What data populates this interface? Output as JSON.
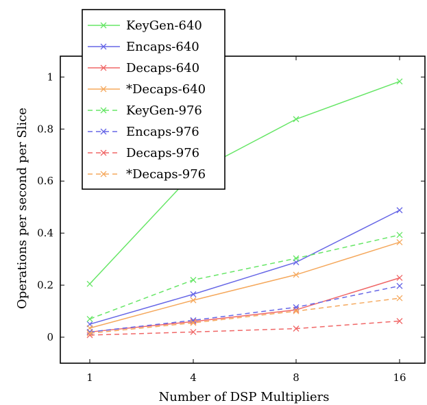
{
  "chart_data": {
    "type": "line",
    "title": "",
    "xlabel": "Number of DSP Multipliers",
    "ylabel": "Operations per second per Slice",
    "x_categories": [
      "1",
      "4",
      "8",
      "16"
    ],
    "ylim": [
      -0.1,
      1.08
    ],
    "y_ticks": [
      0,
      0.2,
      0.4,
      0.6,
      0.8,
      1
    ],
    "y_tick_labels": [
      "0",
      "0.2",
      "0.4",
      "0.6",
      "0.8",
      "1"
    ],
    "grid": false,
    "legend_position": "top-left",
    "series": [
      {
        "name": "KeyGen-640",
        "color": "#66e666",
        "dashed": false,
        "values": [
          0.205,
          0.63,
          0.838,
          0.983
        ]
      },
      {
        "name": "Encaps-640",
        "color": "#6666e6",
        "dashed": false,
        "values": [
          0.05,
          0.165,
          0.288,
          0.488
        ]
      },
      {
        "name": "Decaps-640",
        "color": "#f06666",
        "dashed": false,
        "values": [
          0.02,
          0.06,
          0.105,
          0.228
        ]
      },
      {
        "name": "*Decaps-640",
        "color": "#f5a85c",
        "dashed": false,
        "values": [
          0.035,
          0.142,
          0.24,
          0.365
        ]
      },
      {
        "name": "KeyGen-976",
        "color": "#66e666",
        "dashed": true,
        "values": [
          0.07,
          0.22,
          0.303,
          0.393
        ]
      },
      {
        "name": "Encaps-976",
        "color": "#6666e6",
        "dashed": true,
        "values": [
          0.02,
          0.065,
          0.115,
          0.197
        ]
      },
      {
        "name": "Decaps-976",
        "color": "#f06666",
        "dashed": true,
        "values": [
          0.008,
          0.02,
          0.033,
          0.062
        ]
      },
      {
        "name": "*Decaps-976",
        "color": "#f5a85c",
        "dashed": true,
        "values": [
          0.015,
          0.055,
          0.1,
          0.15
        ]
      }
    ]
  }
}
